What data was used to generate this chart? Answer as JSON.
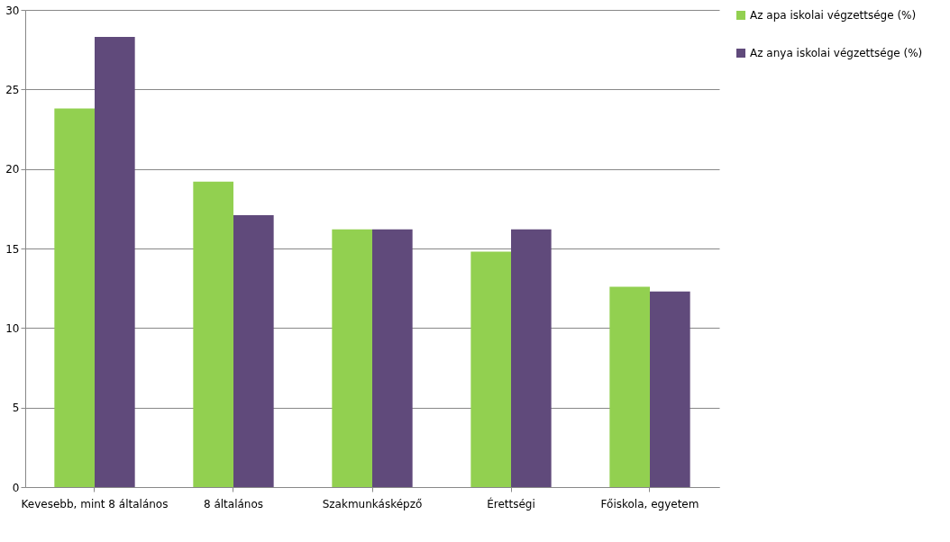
{
  "chart_data": {
    "type": "bar",
    "categories": [
      "Kevesebb, mint 8 általános",
      "8 általános",
      "Szakmunkásképző",
      "Érettségi",
      "Főiskola, egyetem"
    ],
    "series": [
      {
        "name": "Az apa iskolai végzettsége (%)",
        "color": "#92d050",
        "values": [
          23.8,
          19.2,
          16.2,
          14.8,
          12.6
        ]
      },
      {
        "name": "Az anya iskolai végzettsége (%)",
        "color": "#604a7b",
        "values": [
          28.3,
          17.1,
          16.2,
          16.2,
          12.3
        ]
      }
    ],
    "ylim": [
      0,
      30
    ],
    "yticks": [
      0,
      5,
      10,
      15,
      20,
      25,
      30
    ],
    "grid": "y",
    "legend": "right"
  }
}
